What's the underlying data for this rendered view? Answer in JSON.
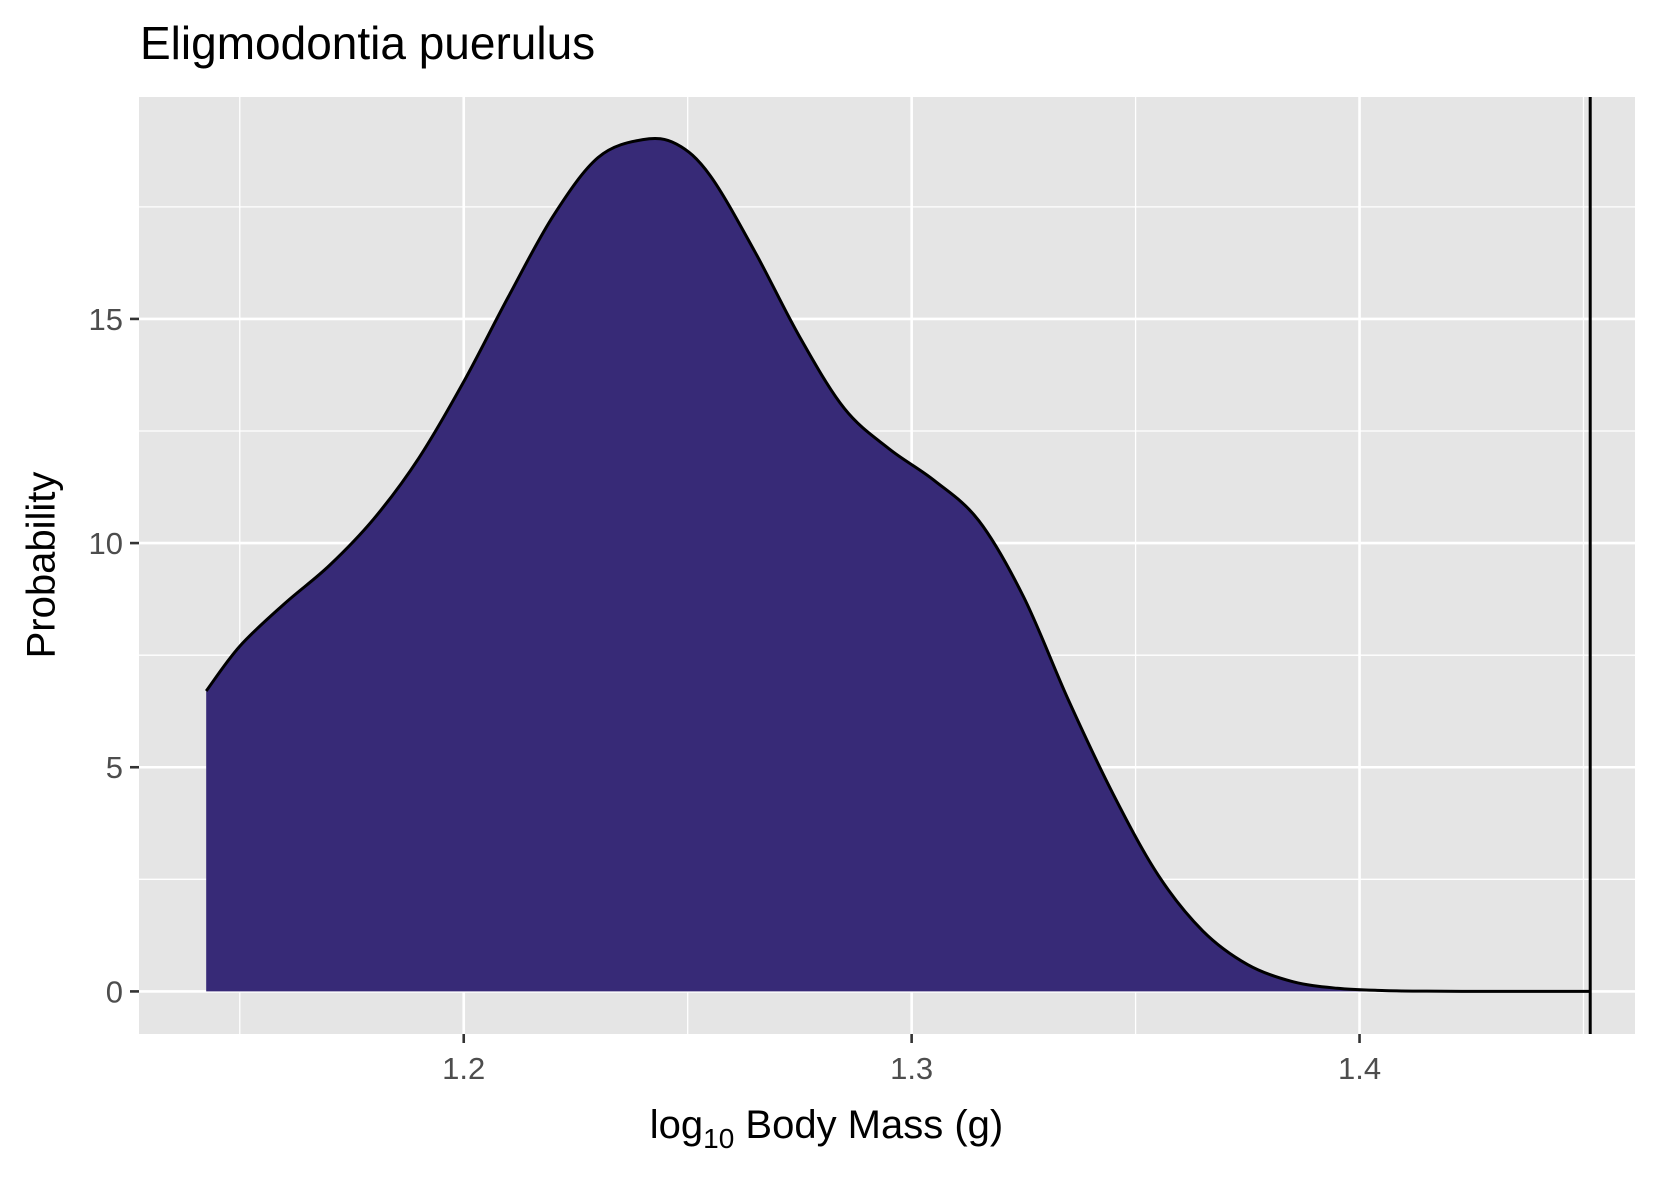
{
  "chart_data": {
    "type": "area",
    "title": "Eligmodontia puerulus",
    "xlabel_prefix": "log",
    "xlabel_subscript": "10",
    "xlabel_suffix": " Body Mass (g)",
    "ylabel": "Probability",
    "xlim": [
      1.1275,
      1.4615
    ],
    "ylim": [
      -0.95,
      19.95
    ],
    "x_ticks": [
      1.2,
      1.3,
      1.4
    ],
    "x_tick_labels": [
      "1.2",
      "1.3",
      "1.4"
    ],
    "x_minor": [
      1.15,
      1.25,
      1.35,
      1.45
    ],
    "y_ticks": [
      0,
      5,
      10,
      15
    ],
    "y_tick_labels": [
      "0",
      "5",
      "10",
      "15"
    ],
    "y_minor": [
      2.5,
      7.5,
      12.5,
      17.5
    ],
    "grid": true,
    "reference_line_x": 1.4515,
    "fill_color": "#372a77",
    "panel_color": "#e5e5e5",
    "x": [
      1.1425,
      1.15,
      1.16,
      1.17,
      1.18,
      1.19,
      1.2,
      1.21,
      1.22,
      1.23,
      1.24,
      1.2475,
      1.255,
      1.265,
      1.275,
      1.285,
      1.295,
      1.305,
      1.315,
      1.325,
      1.335,
      1.345,
      1.355,
      1.365,
      1.375,
      1.385,
      1.395,
      1.405,
      1.415,
      1.425,
      1.435,
      1.445,
      1.4515
    ],
    "y": [
      6.7,
      7.7,
      8.65,
      9.5,
      10.55,
      11.9,
      13.6,
      15.5,
      17.3,
      18.6,
      19.0,
      18.9,
      18.2,
      16.5,
      14.6,
      13.0,
      12.1,
      11.4,
      10.5,
      8.8,
      6.5,
      4.4,
      2.6,
      1.35,
      0.6,
      0.22,
      0.07,
      0.02,
      0.005,
      0.0,
      0.0,
      0.0,
      0.0
    ]
  }
}
